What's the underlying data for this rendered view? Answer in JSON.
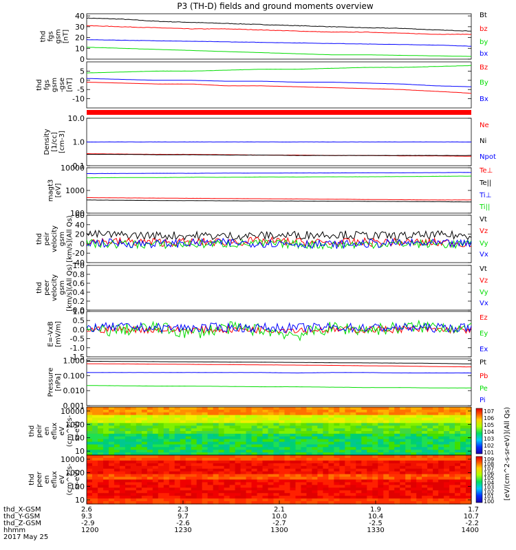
{
  "title": "P3 (TH-D) fields and ground moments overview",
  "colors": {
    "black": "#000000",
    "red": "#ff0000",
    "green": "#00dd00",
    "blue": "#0000ff"
  },
  "chart_data": [
    {
      "type": "line",
      "panel": "fgs-gsm",
      "ylabel": [
        "thd",
        "fgs",
        "gsm",
        "[nT]"
      ],
      "ylim": [
        0,
        42
      ],
      "yticks": [
        "40",
        "30",
        "20",
        "10",
        "0"
      ],
      "ytickvals": [
        40,
        30,
        20,
        10,
        0
      ],
      "series": [
        {
          "name": "Bt",
          "color": "#000000",
          "values": [
            38,
            37,
            35,
            34,
            33,
            32,
            31,
            30,
            29,
            28.5,
            27,
            26
          ]
        },
        {
          "name": "bz",
          "color": "#ff0000",
          "values": [
            31,
            30,
            29,
            28,
            28,
            27,
            26,
            25,
            25,
            24,
            23,
            23
          ]
        },
        {
          "name": "by",
          "color": "#00dd00",
          "values": [
            11,
            10,
            9,
            8,
            7,
            6,
            5,
            4,
            4,
            3.5,
            3,
            2.5
          ]
        },
        {
          "name": "bx",
          "color": "#0000ff",
          "values": [
            18,
            17.5,
            17,
            16.5,
            16,
            15.5,
            15,
            14.5,
            14,
            13.5,
            13,
            12
          ]
        }
      ]
    },
    {
      "type": "line",
      "panel": "fgs-gsm-gse",
      "ylabel": [
        "thd",
        "fgs",
        "gsm",
        "-gse",
        "[nT]"
      ],
      "ylim": [
        -15,
        10
      ],
      "yticks": [
        "5",
        "0",
        "-5",
        "-10"
      ],
      "ytickvals": [
        5,
        0,
        -5,
        -10
      ],
      "series": [
        {
          "name": "Bz",
          "color": "#ff0000",
          "values": [
            -1,
            -1.5,
            -2,
            -2,
            -3,
            -3,
            -3.5,
            -4,
            -4.5,
            -5,
            -6,
            -7
          ]
        },
        {
          "name": "By",
          "color": "#00dd00",
          "values": [
            4,
            4.5,
            5,
            5,
            5.5,
            6,
            6,
            6.5,
            7,
            7,
            7.5,
            8
          ]
        },
        {
          "name": "Bx",
          "color": "#0000ff",
          "values": [
            1,
            0.5,
            0,
            0,
            -0.5,
            -0.5,
            -1,
            -1,
            -1.5,
            -2,
            -3,
            -3.5
          ]
        }
      ]
    },
    {
      "type": "line",
      "panel": "density",
      "log": true,
      "ylabel": [
        "Density",
        "[1/cc]",
        "[cm-3]"
      ],
      "ylim": [
        0.1,
        10
      ],
      "yticks": [
        "10.0",
        "1.0",
        "0.1"
      ],
      "ytickvals": [
        10,
        1,
        0.1
      ],
      "series": [
        {
          "name": "Ne",
          "color": "#ff0000",
          "values": [
            0.32,
            0.31,
            0.3,
            0.3,
            0.29,
            0.28,
            0.28,
            0.27,
            0.27,
            0.26,
            0.26,
            0.25
          ]
        },
        {
          "name": "Ni",
          "color": "#000000",
          "values": [
            0.3,
            0.3,
            0.29,
            0.29,
            0.28,
            0.28,
            0.27,
            0.27,
            0.27,
            0.27,
            0.27,
            0.27
          ]
        },
        {
          "name": "Npot",
          "color": "#0000ff",
          "values": [
            1.0,
            1.0,
            1.0,
            1.0,
            1.0,
            1.0,
            1.0,
            1.0,
            1.0,
            1.0,
            1.0,
            1.0
          ]
        }
      ]
    },
    {
      "type": "line",
      "panel": "temperature",
      "log": true,
      "ylabel": [
        "magt3",
        "[eV]"
      ],
      "ylim": [
        100,
        10000
      ],
      "yticks": [
        "10000",
        "1000",
        "100"
      ],
      "ytickvals": [
        10000,
        1000,
        100
      ],
      "series": [
        {
          "name": "Te⊥",
          "color": "#ff0000",
          "values": [
            480,
            470,
            460,
            450,
            440,
            430,
            420,
            410,
            400,
            390,
            380,
            380
          ]
        },
        {
          "name": "Te||",
          "color": "#000000",
          "values": [
            380,
            370,
            360,
            355,
            350,
            345,
            340,
            335,
            330,
            325,
            320,
            310
          ]
        },
        {
          "name": "Ti⊥",
          "color": "#0000ff",
          "values": [
            5500,
            5600,
            5700,
            5700,
            5800,
            5800,
            5900,
            5900,
            6000,
            6000,
            6100,
            6200
          ]
        },
        {
          "name": "Ti||",
          "color": "#00dd00",
          "values": [
            3600,
            3700,
            3700,
            3800,
            3800,
            3900,
            3900,
            4000,
            4000,
            4100,
            4200,
            4300
          ]
        }
      ]
    },
    {
      "type": "line",
      "panel": "peir-velocity",
      "ylabel": [
        "thd",
        "peir",
        "velocity",
        "gsm",
        "[km/s](All Qs)"
      ],
      "ylim": [
        -40,
        60
      ],
      "yticks": [
        "60",
        "40",
        "20",
        "0",
        "-20",
        "-40"
      ],
      "ytickvals": [
        60,
        40,
        20,
        0,
        -20,
        -40
      ],
      "series": [
        {
          "name": "Vt",
          "color": "#000000",
          "values": [
            20,
            18,
            17,
            17,
            16,
            17,
            18,
            20,
            17,
            16,
            18,
            17
          ]
        },
        {
          "name": "Vz",
          "color": "#ff0000",
          "values": [
            5,
            4,
            3,
            3,
            4,
            5,
            4,
            2,
            3,
            3,
            2,
            1
          ]
        },
        {
          "name": "Vy",
          "color": "#00dd00",
          "values": [
            0,
            -1,
            -2,
            -1,
            0,
            0,
            -1,
            -3,
            -1,
            0,
            -1,
            -2
          ]
        },
        {
          "name": "Vx",
          "color": "#0000ff",
          "values": [
            2,
            1,
            0,
            1,
            2,
            1,
            0,
            -2,
            0,
            1,
            0,
            -1
          ]
        }
      ]
    },
    {
      "type": "line",
      "panel": "peer-velocity",
      "ylabel": [
        "thd",
        "peer",
        "velocity",
        "gsm",
        "[km/s](All Qs)"
      ],
      "ylim": [
        0,
        1
      ],
      "yticks": [
        "1.0",
        "0.8",
        "0.6",
        "0.4",
        "0.2",
        "0.0"
      ],
      "ytickvals": [
        1,
        0.8,
        0.6,
        0.4,
        0.2,
        0
      ],
      "series": [
        {
          "name": "Vt",
          "color": "#000000",
          "values": []
        },
        {
          "name": "Vz",
          "color": "#ff0000",
          "values": []
        },
        {
          "name": "Vy",
          "color": "#00dd00",
          "values": []
        },
        {
          "name": "Vx",
          "color": "#0000ff",
          "values": []
        }
      ]
    },
    {
      "type": "line",
      "panel": "electric-field",
      "ylabel": [
        "E=-VxB",
        "[mV/m]"
      ],
      "ylim": [
        -1.5,
        1.0
      ],
      "yticks": [
        "1.0",
        "0.5",
        "0.0",
        "-0.5",
        "-1.0",
        "-1.5"
      ],
      "ytickvals": [
        1,
        0.5,
        0,
        -0.5,
        -1,
        -1.5
      ],
      "series": [
        {
          "name": "Ez",
          "color": "#ff0000",
          "values": [
            0.0,
            0.02,
            0.0,
            -0.02,
            0.0,
            0.01,
            0.0,
            -0.01,
            0.0,
            0.02,
            0.0,
            -0.02
          ]
        },
        {
          "name": "Ey",
          "color": "#00dd00",
          "values": [
            -0.1,
            0.0,
            0.1,
            -0.2,
            0.1,
            0.0,
            -0.3,
            0.1,
            0.0,
            0.1,
            0.2,
            0.0
          ]
        },
        {
          "name": "Ex",
          "color": "#0000ff",
          "values": [
            0.1,
            0.15,
            0.1,
            0.1,
            0.12,
            0.1,
            0.1,
            0.12,
            0.1,
            0.1,
            0.1,
            0.1
          ]
        }
      ]
    },
    {
      "type": "line",
      "panel": "pressure",
      "log": true,
      "ylabel": [
        "Pressure",
        "[nPa]"
      ],
      "ylim": [
        0.001,
        1.3
      ],
      "yticks": [
        "1.000",
        "0.100",
        "0.010",
        "0.001"
      ],
      "ytickvals": [
        1,
        0.1,
        0.01,
        0.001
      ],
      "series": [
        {
          "name": "Pt",
          "color": "#000000",
          "values": [
            0.9,
            0.88,
            0.85,
            0.82,
            0.8,
            0.78,
            0.75,
            0.72,
            0.7,
            0.68,
            0.65,
            0.6
          ]
        },
        {
          "name": "Pb",
          "color": "#ff0000",
          "values": [
            0.62,
            0.6,
            0.58,
            0.56,
            0.54,
            0.52,
            0.5,
            0.48,
            0.45,
            0.43,
            0.4,
            0.38
          ]
        },
        {
          "name": "Pe",
          "color": "#00dd00",
          "values": [
            0.022,
            0.021,
            0.02,
            0.02,
            0.019,
            0.018,
            0.018,
            0.017,
            0.016,
            0.016,
            0.015,
            0.015
          ]
        },
        {
          "name": "Pi",
          "color": "#0000ff",
          "values": [
            0.16,
            0.16,
            0.16,
            0.16,
            0.16,
            0.16,
            0.15,
            0.16,
            0.16,
            0.15,
            0.15,
            0.15
          ]
        }
      ]
    },
    {
      "type": "heatmap",
      "panel": "peir-spectrogram",
      "log": true,
      "ylabel": [
        "thd",
        "peir",
        "en",
        "eflux",
        "eV",
        "(cm^2-s-",
        "sr-eV)"
      ],
      "ylim": [
        5,
        20000
      ],
      "yticks": [
        "10000",
        "1000",
        "100",
        "10"
      ],
      "ytickvals": [
        10000,
        1000,
        100,
        10
      ],
      "colorbar": {
        "ticks": [
          "10^7",
          "10^6",
          "10^5",
          "10^4",
          "10^3",
          "10^2",
          "10^1"
        ],
        "label": "[eV/(cm^2-s-sr-eV)](All Qs)"
      }
    },
    {
      "type": "heatmap",
      "panel": "peer-spectrogram",
      "log": true,
      "ylabel": [
        "thd",
        "peer",
        "en",
        "eflux",
        "eV",
        "(cm^2-s-",
        "sr-eV)"
      ],
      "ylim": [
        5,
        20000
      ],
      "yticks": [
        "10000",
        "1000",
        "100",
        "10"
      ],
      "ytickvals": [
        10000,
        1000,
        100,
        10
      ],
      "colorbar": {
        "ticks": [
          "10^9",
          "10^8",
          "10^7",
          "10^6",
          "10^5",
          "10^4",
          "10^3",
          "10^2",
          "10^1",
          "10^0"
        ],
        "label": "[eV/(cm^2-s-sr-eV)](All Qs)"
      }
    }
  ],
  "xaxis": {
    "rows": [
      {
        "label": "thd_X-GSM",
        "values": [
          "2.6",
          "2.3",
          "2.1",
          "1.9",
          "1.7"
        ]
      },
      {
        "label": "thd_Y-GSM",
        "values": [
          "9.3",
          "9.7",
          "10.0",
          "10.4",
          "10.7"
        ]
      },
      {
        "label": "thd_Z-GSM",
        "values": [
          "-2.9",
          "-2.6",
          "-2.7",
          "-2.5",
          "-2.2"
        ]
      },
      {
        "label": "hhmm",
        "values": [
          "1200",
          "1230",
          "1300",
          "1330",
          "1400"
        ]
      }
    ],
    "date": "2017 May 25"
  }
}
